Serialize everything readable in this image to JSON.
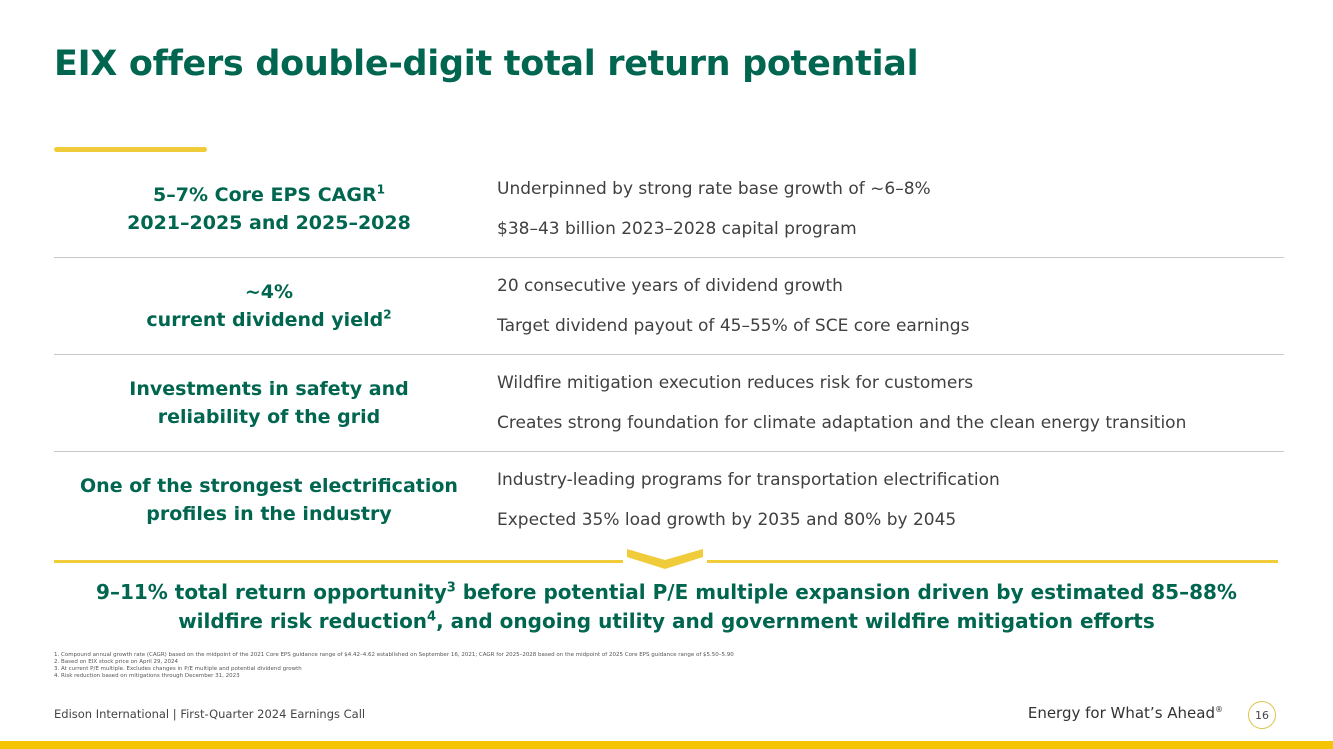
{
  "title": "EIX offers double-digit total return potential",
  "rows": [
    {
      "left_line1": "5–7% Core EPS CAGR",
      "left_line1_sup": "1",
      "left_line2": "2021–2025 and 2025–2028",
      "left_line2_sup": "",
      "bullets": [
        "Underpinned by strong rate base growth of ~6–8%",
        "$38–43 billion 2023–2028 capital program"
      ]
    },
    {
      "left_line1": "~4%",
      "left_line1_sup": "",
      "left_line2": "current dividend yield",
      "left_line2_sup": "2",
      "bullets": [
        "20 consecutive years of dividend growth",
        "Target dividend payout of 45–55% of SCE core earnings"
      ]
    },
    {
      "left_line1": "Investments in safety and",
      "left_line1_sup": "",
      "left_line2": "reliability of the grid",
      "left_line2_sup": "",
      "bullets": [
        "Wildfire mitigation execution reduces risk for customers",
        "Creates strong foundation for climate adaptation and the clean energy transition"
      ]
    },
    {
      "left_line1": "One of the strongest electrification",
      "left_line1_sup": "",
      "left_line2": "profiles in the industry",
      "left_line2_sup": "",
      "bullets": [
        "Industry-leading programs for transportation electrification",
        "Expected 35% load growth by 2035 and 80% by 2045"
      ]
    }
  ],
  "summary": {
    "part1": "9–11% total return opportunity",
    "sup1": "3",
    "part2": " before potential P/E multiple expansion driven by estimated 85–88%",
    "part3": "wildfire risk reduction",
    "sup2": "4",
    "part4": ", and ongoing utility and government wildfire mitigation efforts"
  },
  "footnotes": [
    "1.  Compound annual growth rate (CAGR) based on the midpoint of the 2021 Core EPS guidance range of $4.42–4.62 established on September 16, 2021; CAGR for 2025–2028 based on the midpoint of 2025 Core EPS guidance range of $5.50–5.90",
    "2.  Based on EIX stock price on April 29, 2024",
    "3.  At current P/E multiple. Excludes changes in P/E multiple and potential dividend growth",
    "4.  Risk reduction based on mitigations through December 31, 2023"
  ],
  "footer": {
    "left": "Edison International |  First-Quarter 2024 Earnings Call",
    "tagline": "Energy for What’s Ahead",
    "tagline_mark": "®",
    "page_number": "16"
  },
  "colors": {
    "brand_green": "#00664f",
    "accent_yellow": "#f0cb3a",
    "band_yellow": "#f5c400"
  }
}
